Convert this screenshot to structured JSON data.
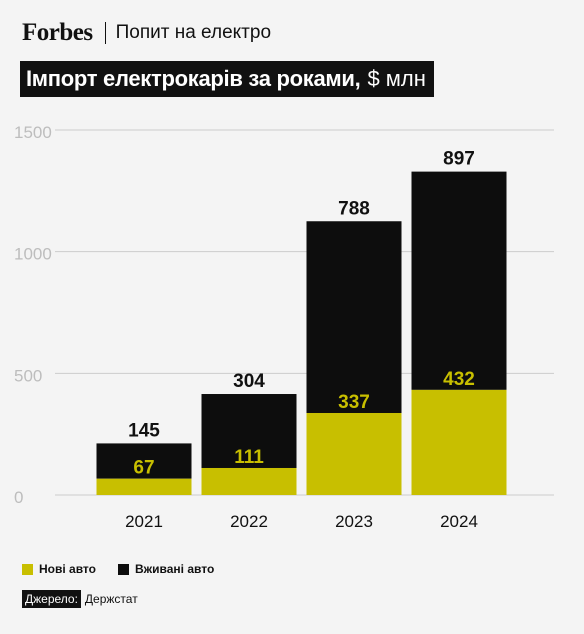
{
  "header": {
    "brand": "Forbes",
    "section": "Попит на електро"
  },
  "title": {
    "main": "Імпорт електрокарів за роками,",
    "unit": "$ млн"
  },
  "colors": {
    "new": "#c8bf00",
    "used": "#0d0d0d",
    "grid": "#cccccc",
    "axis_text": "#bdbdbd",
    "new_label": "#c8bf00"
  },
  "chart_data": {
    "type": "bar",
    "stacked": true,
    "categories": [
      "2021",
      "2022",
      "2023",
      "2024"
    ],
    "series": [
      {
        "name": "Нові авто",
        "values": [
          67,
          111,
          337,
          432
        ]
      },
      {
        "name": "Вживані авто",
        "values": [
          145,
          304,
          788,
          897
        ]
      }
    ],
    "y_ticks": [
      0,
      500,
      1000,
      1500
    ],
    "ylim": [
      0,
      1500
    ],
    "grid": true,
    "legend_position": "bottom-left"
  },
  "legend": [
    {
      "label": "Нові авто"
    },
    {
      "label": "Вживані авто"
    }
  ],
  "source": {
    "label": "Джерело:",
    "value": "Держстат"
  }
}
